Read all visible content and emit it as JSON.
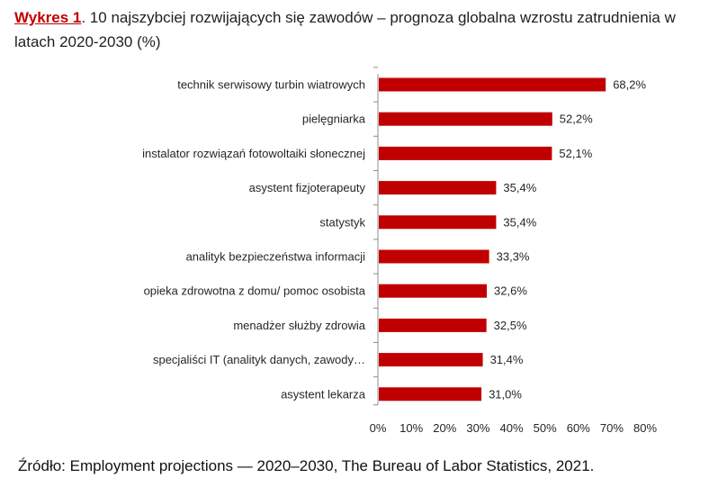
{
  "title": {
    "lead": "Wykres 1",
    "text": ". 10 najszybciej rozwijających się zawodów – prognoza globalna wzrostu zatrudnienia w latach 2020-2030 (%)"
  },
  "source": "Źródło: Employment projections — 2020–2030, The Bureau of Labor Statistics, 2021.",
  "colors": {
    "bar": "#c00000",
    "axis": "#8c8c8c"
  },
  "chart_data": {
    "type": "bar",
    "orientation": "horizontal",
    "title": "10 najszybciej rozwijających się zawodów – prognoza globalna wzrostu zatrudnienia w latach 2020-2030 (%)",
    "xlabel": "",
    "ylabel": "",
    "xlim": [
      0,
      80
    ],
    "categories": [
      "technik serwisowy turbin wiatrowych",
      "pielęgniarka",
      "instalator rozwiązań fotowoltaiki słonecznej",
      "asystent fizjoterapeuty",
      "statystyk",
      "analityk bezpieczeństwa informacji",
      "opieka zdrowotna z domu/ pomoc osobista",
      "menadżer służby zdrowia",
      "specjaliści IT (analityk danych, zawody…",
      "asystent lekarza"
    ],
    "values": [
      68.2,
      52.2,
      52.1,
      35.4,
      35.4,
      33.3,
      32.6,
      32.5,
      31.4,
      31.0
    ],
    "value_labels": [
      "68,2%",
      "52,2%",
      "52,1%",
      "35,4%",
      "35,4%",
      "33,3%",
      "32,6%",
      "32,5%",
      "31,4%",
      "31,0%"
    ],
    "ticks": [
      0,
      10,
      20,
      30,
      40,
      50,
      60,
      70,
      80
    ],
    "tick_labels": [
      "0%",
      "10%",
      "20%",
      "30%",
      "40%",
      "50%",
      "60%",
      "70%",
      "80%"
    ],
    "grid": false,
    "legend": "none"
  }
}
